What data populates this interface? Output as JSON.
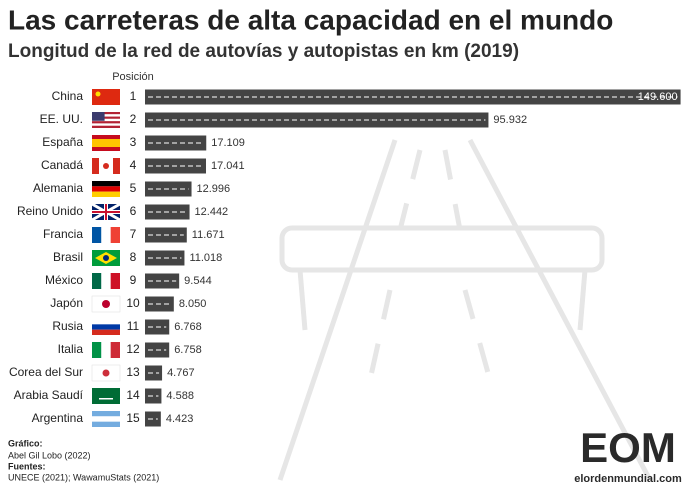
{
  "chart_data": {
    "type": "bar",
    "orientation": "horizontal",
    "title": "Las carreteras de alta capacidad en el mundo",
    "subtitle": "Longitud de la red de autovías y autopistas en km (2019)",
    "rank_header": "Posición",
    "categories": [
      "China",
      "EE. UU.",
      "España",
      "Canadá",
      "Alemania",
      "Reino Unido",
      "Francia",
      "Brasil",
      "México",
      "Japón",
      "Rusia",
      "Italia",
      "Corea del Sur",
      "Arabia Saudí",
      "Argentina"
    ],
    "ranks": [
      1,
      2,
      3,
      4,
      5,
      6,
      7,
      8,
      9,
      10,
      11,
      12,
      13,
      14,
      15
    ],
    "values": [
      149600,
      95932,
      17109,
      17041,
      12996,
      12442,
      11671,
      11018,
      9544,
      8050,
      6768,
      6758,
      4767,
      4588,
      4423
    ],
    "value_labels": [
      "149.600",
      "95.932",
      "17.109",
      "17.041",
      "12.996",
      "12.442",
      "11.671",
      "11.018",
      "9.544",
      "8.050",
      "6.768",
      "6.758",
      "4.767",
      "4.588",
      "4.423"
    ],
    "color": "#444444",
    "xlim": [
      0,
      150000
    ],
    "credits": {
      "graphic_label": "Gráfico:",
      "graphic": "Abel Gil Lobo (2022)",
      "sources_label": "Fuentes:",
      "sources": "UNECE (2021); WawamuStats (2021)"
    },
    "logo": {
      "mark": "EOM",
      "site": "elordenmundial.com"
    }
  }
}
